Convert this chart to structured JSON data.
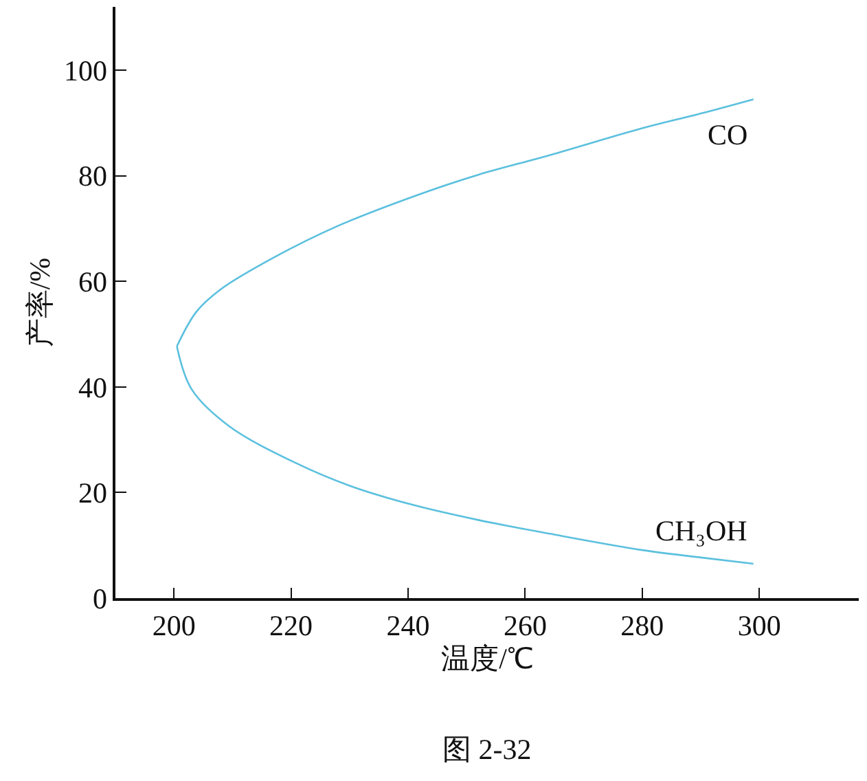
{
  "chart_data": {
    "type": "line",
    "xlabel": "温度/℃",
    "ylabel": "产率/%",
    "series": [
      {
        "name": "CO",
        "color": "#5bc0de",
        "x": [
          200.5,
          203.8,
          208,
          217.2,
          228,
          240.7,
          252,
          264.2,
          280,
          290,
          299
        ],
        "values": [
          47.7,
          54.2,
          58.5,
          64.6,
          70.5,
          76,
          80.2,
          83.9,
          89,
          91.8,
          94.5
        ]
      },
      {
        "name": "CH₃OH",
        "color": "#5bc0de",
        "x": [
          200.5,
          203,
          209.4,
          221,
          230,
          240.7,
          252,
          264.2,
          280,
          290,
          299
        ],
        "values": [
          47.7,
          39.6,
          32.6,
          25.5,
          21.3,
          17.7,
          14.8,
          12.2,
          9.1,
          7.7,
          6.5
        ]
      }
    ],
    "xlim": [
      190,
      317
    ],
    "xticks": [
      200,
      220,
      240,
      260,
      280,
      300
    ],
    "ylim": [
      0,
      112
    ],
    "yticks": [
      0,
      20,
      40,
      60,
      80,
      100
    ],
    "legend": false,
    "marker": "none",
    "line_style": "solid",
    "annotations": [
      "图 2-32"
    ]
  }
}
